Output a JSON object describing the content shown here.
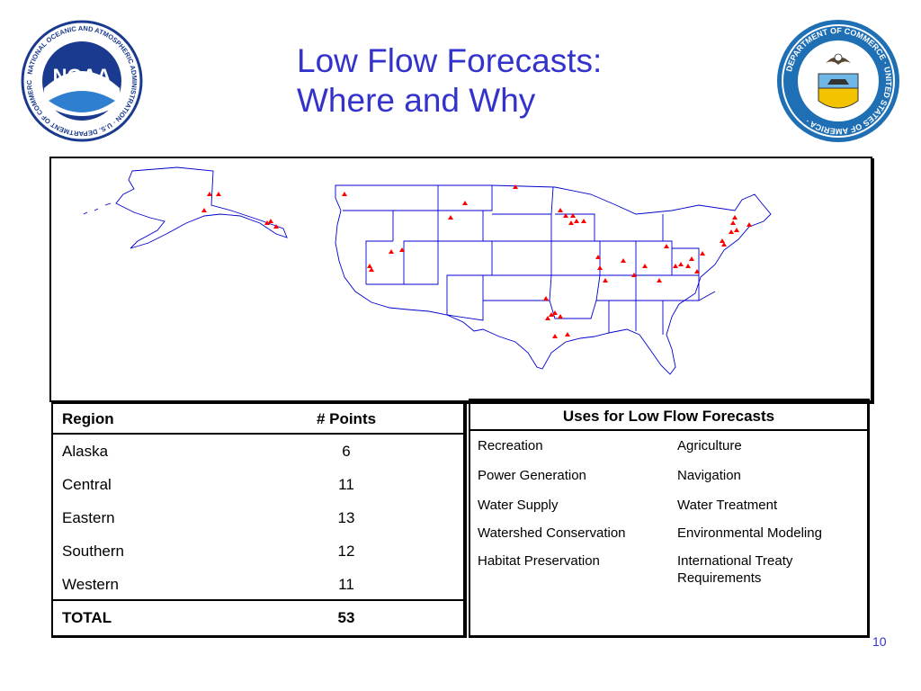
{
  "slide": {
    "title_line1": "Low Flow Forecasts:",
    "title_line2": "Where and Why",
    "page_number": "10"
  },
  "logos": {
    "noaa": {
      "icon": "noaa-logo",
      "text": "NOAA",
      "ring_text": "NATIONAL OCEANIC AND ATMOSPHERIC ADMINISTRATION · U.S. DEPARTMENT OF COMMERCE"
    },
    "commerce": {
      "icon": "department-of-commerce-seal",
      "ring_text": "DEPARTMENT OF COMMERCE · UNITED STATES OF AMERICA"
    }
  },
  "points_table": {
    "header_region": "Region",
    "header_points": "# Points",
    "rows": [
      {
        "region": "Alaska",
        "points": "6"
      },
      {
        "region": "Central",
        "points": "11"
      },
      {
        "region": "Eastern",
        "points": "13"
      },
      {
        "region": "Southern",
        "points": "12"
      },
      {
        "region": "Western",
        "points": "11"
      }
    ],
    "total_label": "TOTAL",
    "total_value": "53"
  },
  "uses_table": {
    "header": "Uses for Low Flow Forecasts",
    "col1": [
      "Recreation",
      "Power Generation",
      "Water Supply",
      "Watershed Conservation",
      "Habitat Preservation"
    ],
    "col2": [
      "Agriculture",
      "Navigation",
      "Water Treatment",
      "Environmental Modeling",
      "International Treaty Requirements"
    ]
  },
  "map": {
    "marker_color": "#ff0000",
    "outline_color": "#0000cc"
  },
  "colors": {
    "title": "#3333cc",
    "noaa_blue": "#1a3a8f",
    "seal_blue": "#1f6fb5"
  }
}
